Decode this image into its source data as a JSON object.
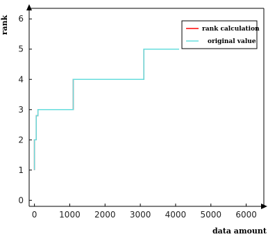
{
  "chart_data": {
    "type": "line",
    "xlabel": "data amount",
    "ylabel": "rank",
    "xlim": [
      -150,
      6500
    ],
    "ylim": [
      -0.2,
      6.35
    ],
    "x_ticks": [
      0,
      1000,
      2000,
      3000,
      4000,
      5000,
      6000
    ],
    "y_ticks": [
      0,
      1,
      2,
      3,
      4,
      5,
      6
    ],
    "grid": false,
    "legend_position": "top-right",
    "series": [
      {
        "name": "rank calculation",
        "color": "#ff0000",
        "x": [
          0,
          0,
          50,
          50,
          100,
          100,
          1100,
          1100,
          3100,
          3100,
          4100
        ],
        "y": [
          1,
          2,
          2,
          2.8,
          2.8,
          3,
          3,
          4,
          4,
          5,
          5
        ]
      },
      {
        "name": "original value",
        "color": "#66dddd",
        "x": [
          0,
          0,
          50,
          50,
          100,
          100,
          1100,
          1100,
          3100,
          3100,
          4100
        ],
        "y": [
          1,
          2,
          2,
          2.8,
          2.8,
          3,
          3,
          4,
          4,
          5,
          5
        ]
      }
    ]
  }
}
